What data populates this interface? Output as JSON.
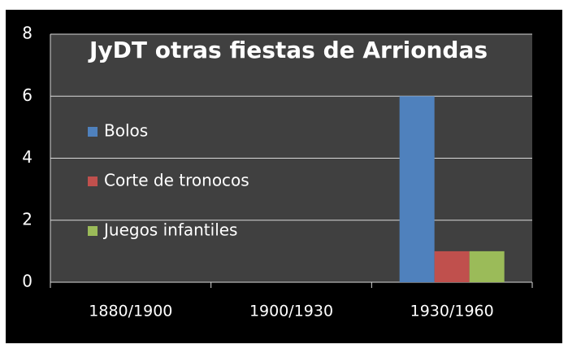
{
  "chart_data": {
    "type": "bar",
    "title": "JyDT otras fiestas de Arriondas",
    "categories": [
      "1880/1900",
      "1900/1930",
      "1930/1960"
    ],
    "series": [
      {
        "name": "Bolos",
        "color": "#4f81bd",
        "values": [
          0,
          0,
          6
        ]
      },
      {
        "name": "Corte de tronocos",
        "color": "#c0504d",
        "values": [
          0,
          0,
          1
        ]
      },
      {
        "name": "Juegos infantiles",
        "color": "#9bbb59",
        "values": [
          0,
          0,
          1
        ]
      }
    ],
    "ylim": [
      0,
      8
    ],
    "yticks": [
      0,
      2,
      4,
      6,
      8
    ],
    "grid": true,
    "legend": "left"
  }
}
